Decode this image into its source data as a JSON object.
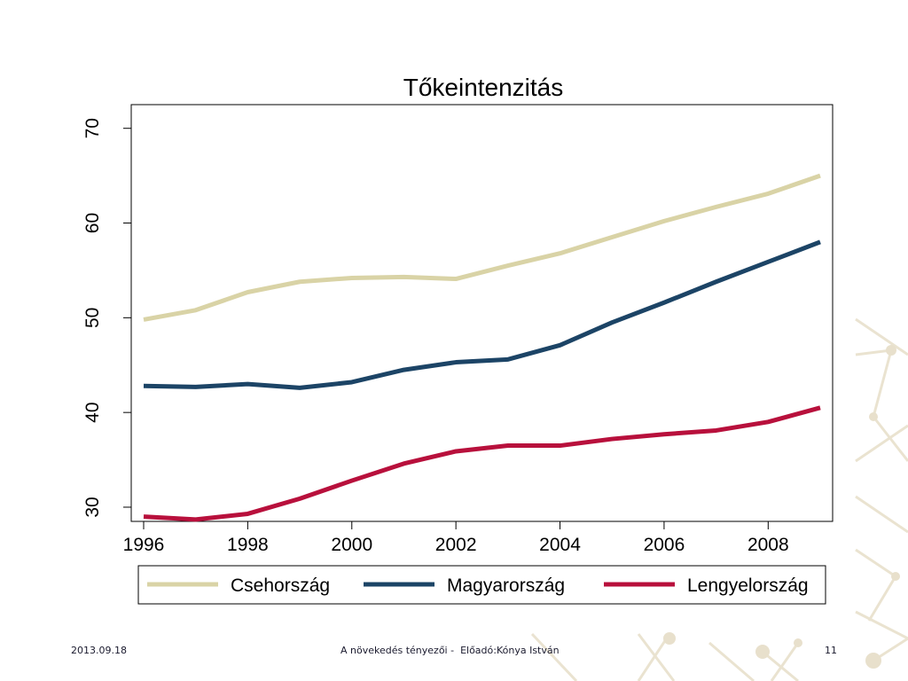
{
  "chart_data": {
    "type": "line",
    "title": "Tőkeintenzitás",
    "xlabel": "",
    "ylabel": "",
    "x": [
      1996,
      1997,
      1998,
      1999,
      2000,
      2001,
      2002,
      2003,
      2004,
      2005,
      2006,
      2007,
      2008,
      2009
    ],
    "xlim": [
      1996,
      2009
    ],
    "ylim": [
      28.5,
      72.5
    ],
    "xticks": [
      "1996",
      "1998",
      "2000",
      "2002",
      "2004",
      "2006",
      "2008"
    ],
    "yticks": [
      "30",
      "40",
      "50",
      "60",
      "70"
    ],
    "grid": false,
    "legend_position": "bottom",
    "series": [
      {
        "name": "Csehország",
        "color": "#d9d3a6",
        "values": [
          49.8,
          50.8,
          52.7,
          53.8,
          54.2,
          54.3,
          54.1,
          55.5,
          56.8,
          58.5,
          60.2,
          61.7,
          63.1,
          65.0
        ]
      },
      {
        "name": "Magyarország",
        "color": "#1c4466",
        "values": [
          42.8,
          42.7,
          43.0,
          42.6,
          43.2,
          44.5,
          45.3,
          45.6,
          47.1,
          49.5,
          51.6,
          53.8,
          55.9,
          58.0
        ]
      },
      {
        "name": "Lengyelország",
        "color": "#b8103c",
        "values": [
          29.0,
          28.7,
          29.3,
          30.9,
          32.8,
          34.6,
          35.9,
          36.5,
          36.5,
          37.2,
          37.7,
          38.1,
          39.0,
          40.5
        ]
      }
    ]
  },
  "footer": {
    "date": "2013.09.18",
    "center": "A növekedés tényezői -  Előadó:Kónya István",
    "page": "11"
  }
}
